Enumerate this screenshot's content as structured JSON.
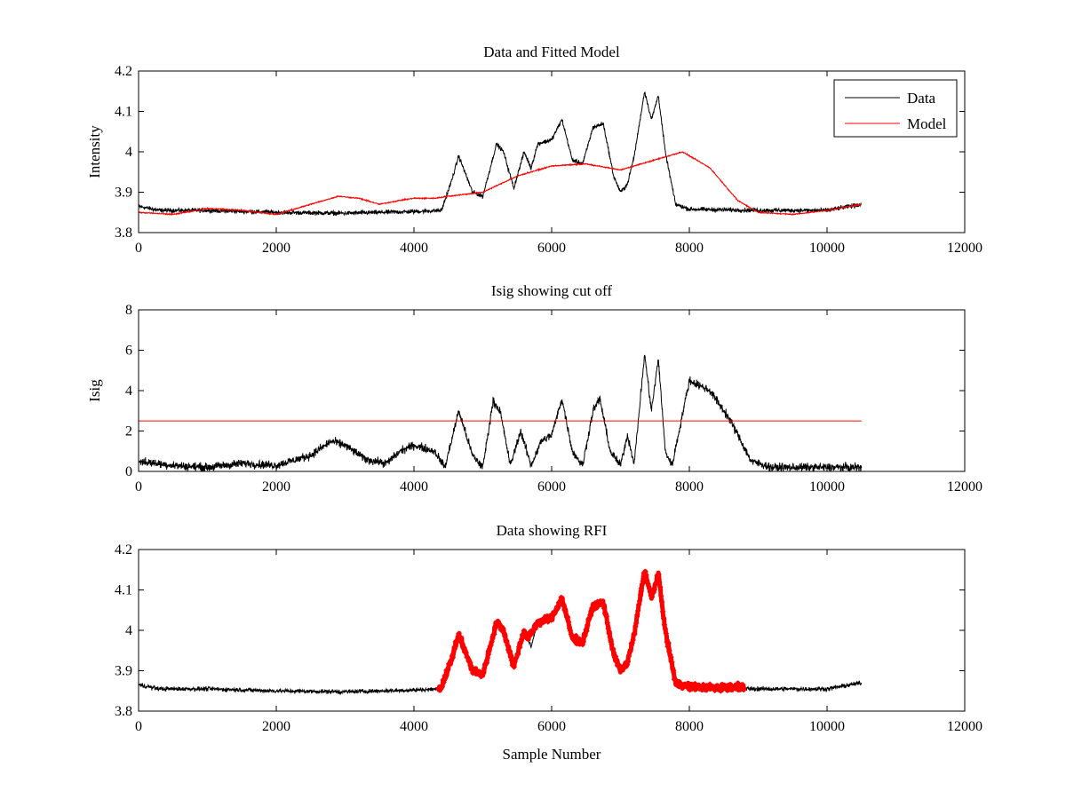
{
  "chart_data": [
    {
      "type": "line",
      "title": "Data and Fitted Model",
      "xlabel": "",
      "ylabel": "Intensity",
      "xlim": [
        0,
        12000
      ],
      "ylim": [
        3.8,
        4.2
      ],
      "xticks": [
        0,
        2000,
        4000,
        6000,
        8000,
        10000,
        12000
      ],
      "yticks": [
        3.8,
        3.9,
        4.0,
        4.1,
        4.2
      ],
      "xtick_labels": [
        "0",
        "2000",
        "4000",
        "6000",
        "8000",
        "10000",
        "12000"
      ],
      "ytick_labels": [
        "3.8",
        "3.9",
        "4",
        "4.1",
        "4.2"
      ],
      "grid": false,
      "legend": {
        "placement": "top-right",
        "entries": [
          "Data",
          "Model"
        ]
      },
      "series": [
        {
          "name": "Data",
          "color": "#000000",
          "noise": 0.008,
          "x": [
            0,
            300,
            1000,
            2000,
            3000,
            4000,
            4400,
            4550,
            4650,
            4850,
            5000,
            5200,
            5300,
            5450,
            5600,
            5700,
            5800,
            6000,
            6150,
            6300,
            6450,
            6600,
            6750,
            6900,
            7000,
            7100,
            7200,
            7350,
            7450,
            7550,
            7650,
            7800,
            8000,
            9000,
            10000,
            10500
          ],
          "y": [
            3.865,
            3.855,
            3.855,
            3.85,
            3.848,
            3.852,
            3.855,
            3.93,
            3.99,
            3.9,
            3.89,
            4.02,
            4.0,
            3.91,
            4.0,
            3.96,
            4.02,
            4.03,
            4.08,
            3.98,
            3.97,
            4.06,
            4.07,
            3.94,
            3.9,
            3.92,
            3.99,
            4.15,
            4.08,
            4.14,
            4.0,
            3.87,
            3.858,
            3.855,
            3.855,
            3.87
          ]
        },
        {
          "name": "Model",
          "color": "#ff0000",
          "noise": 0.002,
          "x": [
            0,
            500,
            1000,
            1500,
            2000,
            2500,
            2900,
            3200,
            3500,
            3800,
            4000,
            4300,
            4500,
            5000,
            5500,
            6000,
            6500,
            7000,
            7500,
            7900,
            8300,
            8700,
            9000,
            9500,
            10000,
            10500
          ],
          "y": [
            3.85,
            3.845,
            3.86,
            3.855,
            3.845,
            3.87,
            3.89,
            3.885,
            3.87,
            3.88,
            3.885,
            3.885,
            3.89,
            3.9,
            3.94,
            3.965,
            3.97,
            3.955,
            3.98,
            4.0,
            3.96,
            3.88,
            3.85,
            3.845,
            3.855,
            3.87
          ]
        }
      ]
    },
    {
      "type": "line",
      "title": "Isig showing cut off",
      "xlabel": "",
      "ylabel": "Isig",
      "xlim": [
        0,
        12000
      ],
      "ylim": [
        0,
        8
      ],
      "xticks": [
        0,
        2000,
        4000,
        6000,
        8000,
        10000,
        12000
      ],
      "yticks": [
        0,
        2,
        4,
        6,
        8
      ],
      "xtick_labels": [
        "0",
        "2000",
        "4000",
        "6000",
        "8000",
        "10000",
        "12000"
      ],
      "ytick_labels": [
        "0",
        "2",
        "4",
        "6",
        "8"
      ],
      "grid": false,
      "series": [
        {
          "color": "#000000",
          "noise": 0.3,
          "x": [
            0,
            500,
            1000,
            1500,
            2000,
            2500,
            2800,
            3000,
            3300,
            3600,
            3800,
            4000,
            4300,
            4450,
            4650,
            4850,
            5000,
            5150,
            5250,
            5400,
            5550,
            5700,
            5850,
            6000,
            6150,
            6300,
            6450,
            6600,
            6700,
            6850,
            7000,
            7100,
            7200,
            7350,
            7450,
            7550,
            7650,
            7750,
            8000,
            8300,
            8600,
            8900,
            9200,
            10000,
            10500
          ],
          "y": [
            0.5,
            0.3,
            0.2,
            0.4,
            0.3,
            0.8,
            1.5,
            1.3,
            0.6,
            0.4,
            1.0,
            1.3,
            1.0,
            0.2,
            3.0,
            0.8,
            0.2,
            3.5,
            3.0,
            0.3,
            2.0,
            0.3,
            1.5,
            1.8,
            3.6,
            1.0,
            0.3,
            3.0,
            3.6,
            1.0,
            0.3,
            1.8,
            0.4,
            5.8,
            3.0,
            5.6,
            1.0,
            0.3,
            4.5,
            4.0,
            2.5,
            0.5,
            0.2,
            0.2,
            0.2
          ]
        },
        {
          "color": "#ff0000",
          "noise": 0,
          "x": [
            0,
            10500
          ],
          "y": [
            2.5,
            2.5
          ]
        }
      ]
    },
    {
      "type": "line",
      "title": "Data showing RFI",
      "xlabel": "Sample Number",
      "ylabel": "",
      "xlim": [
        0,
        12000
      ],
      "ylim": [
        3.8,
        4.2
      ],
      "xticks": [
        0,
        2000,
        4000,
        6000,
        8000,
        10000,
        12000
      ],
      "yticks": [
        3.8,
        3.9,
        4.0,
        4.1,
        4.2
      ],
      "xtick_labels": [
        "0",
        "2000",
        "4000",
        "6000",
        "8000",
        "10000",
        "12000"
      ],
      "ytick_labels": [
        "3.8",
        "3.9",
        "4",
        "4.1",
        "4.2"
      ],
      "grid": false,
      "series": [
        {
          "color": "#000000",
          "noise": 0.008,
          "x": [
            0,
            300,
            1000,
            2000,
            3000,
            4000,
            4400,
            4550,
            4650,
            4850,
            5000,
            5200,
            5300,
            5450,
            5600,
            5700,
            5800,
            6000,
            6150,
            6300,
            6450,
            6600,
            6750,
            6900,
            7000,
            7100,
            7200,
            7350,
            7450,
            7550,
            7650,
            7800,
            8000,
            9000,
            10000,
            10500
          ],
          "y": [
            3.865,
            3.855,
            3.855,
            3.85,
            3.848,
            3.852,
            3.855,
            3.93,
            3.99,
            3.9,
            3.89,
            4.02,
            4.0,
            3.91,
            4.0,
            3.96,
            4.02,
            4.03,
            4.08,
            3.98,
            3.97,
            4.06,
            4.07,
            3.94,
            3.9,
            3.92,
            3.99,
            4.15,
            4.08,
            4.14,
            4.0,
            3.87,
            3.858,
            3.855,
            3.855,
            3.87
          ]
        },
        {
          "color": "#ff0000",
          "noise": 0.012,
          "marker": "plus",
          "x": [
            4350,
            4400,
            4550,
            4650,
            4850,
            5000,
            5200,
            5300,
            5450,
            5600,
            5650,
            5800,
            6000,
            6150,
            6300,
            6450,
            6600,
            6750,
            6900,
            7000,
            7100,
            7200,
            7350,
            7450,
            7550,
            7650,
            7800,
            8000,
            8400,
            8800
          ],
          "y": [
            3.855,
            3.86,
            3.93,
            3.99,
            3.9,
            3.89,
            4.02,
            4.0,
            3.91,
            4.0,
            3.98,
            4.02,
            4.03,
            4.08,
            3.98,
            3.97,
            4.06,
            4.07,
            3.94,
            3.9,
            3.92,
            3.99,
            4.15,
            4.08,
            4.14,
            4.0,
            3.87,
            3.86,
            3.858,
            3.86
          ]
        }
      ]
    }
  ]
}
